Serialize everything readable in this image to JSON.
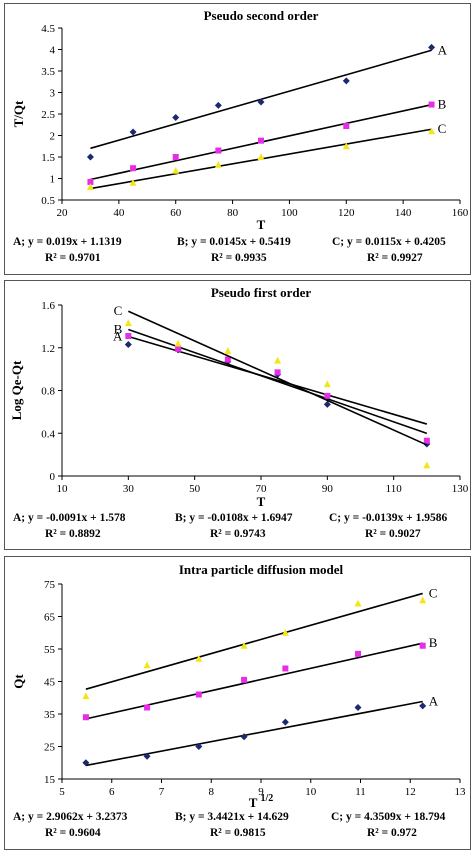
{
  "chart_data": [
    {
      "type": "scatter",
      "title": "Pseudo second order",
      "xlabel": "T",
      "ylabel": "T/Qt",
      "xlim": [
        20,
        160
      ],
      "ylim": [
        0.5,
        4.5
      ],
      "xticks": [
        20,
        40,
        60,
        80,
        100,
        120,
        140,
        160
      ],
      "yticks": [
        0.5,
        1,
        1.5,
        2,
        2.5,
        3,
        3.5,
        4,
        4.5
      ],
      "grid": false,
      "series": [
        {
          "name": "A",
          "color": "#1a2a6e",
          "marker": "diamond",
          "x": [
            30,
            45,
            60,
            75,
            90,
            120,
            150
          ],
          "y": [
            1.5,
            2.08,
            2.42,
            2.7,
            2.78,
            3.27,
            4.05
          ],
          "fit": {
            "slope": 0.019,
            "intercept": 1.1319
          }
        },
        {
          "name": "B",
          "color": "#e62ee6",
          "marker": "square",
          "x": [
            30,
            45,
            60,
            75,
            90,
            120,
            150
          ],
          "y": [
            0.92,
            1.24,
            1.5,
            1.65,
            1.88,
            2.22,
            2.72
          ],
          "fit": {
            "slope": 0.0145,
            "intercept": 0.5419
          }
        },
        {
          "name": "C",
          "color": "#f2e61a",
          "marker": "triangle",
          "x": [
            30,
            45,
            60,
            75,
            90,
            120,
            150
          ],
          "y": [
            0.8,
            0.9,
            1.18,
            1.32,
            1.5,
            1.75,
            2.1
          ],
          "fit": {
            "slope": 0.0115,
            "intercept": 0.4205
          }
        }
      ],
      "equations": [
        {
          "series": "A",
          "eq": "y = 0.019x + 1.1319",
          "r2": "R² = 0.9701"
        },
        {
          "series": "B",
          "eq": "y = 0.0145x + 0.5419",
          "r2": "R² = 0.9935"
        },
        {
          "series": "C",
          "eq": "y = 0.0115x + 0.4205",
          "r2": "R² = 0.9927"
        }
      ]
    },
    {
      "type": "scatter",
      "title": "Pseudo first order",
      "xlabel": "T",
      "ylabel": "Log Qe-Qt",
      "xlim": [
        10,
        130
      ],
      "ylim": [
        0,
        1.6
      ],
      "xticks": [
        10,
        30,
        50,
        70,
        90,
        110,
        130
      ],
      "yticks": [
        0,
        0.4,
        0.8,
        1.2,
        1.6
      ],
      "yticklabels": [
        "0",
        "0.4",
        "0.8",
        "1.2",
        "1.6"
      ],
      "grid": false,
      "series": [
        {
          "name": "A",
          "color": "#1a2a6e",
          "marker": "diamond",
          "x": [
            30,
            45,
            60,
            75,
            90,
            120
          ],
          "y": [
            1.23,
            1.18,
            1.07,
            0.95,
            0.67,
            0.3
          ],
          "fit": {
            "slope": -0.0091,
            "intercept": 1.578
          }
        },
        {
          "name": "B",
          "color": "#e62ee6",
          "marker": "square",
          "x": [
            30,
            45,
            60,
            75,
            90,
            120
          ],
          "y": [
            1.31,
            1.19,
            1.09,
            0.97,
            0.75,
            0.33
          ],
          "fit": {
            "slope": -0.0108,
            "intercept": 1.6947
          }
        },
        {
          "name": "C",
          "color": "#f2e61a",
          "marker": "triangle",
          "x": [
            30,
            45,
            60,
            75,
            90,
            120
          ],
          "y": [
            1.43,
            1.24,
            1.17,
            1.08,
            0.86,
            0.1
          ],
          "fit": {
            "slope": -0.0139,
            "intercept": 1.9586
          }
        }
      ],
      "equations": [
        {
          "series": "A",
          "eq": "y = -0.0091x + 1.578",
          "r2": "R² = 0.8892"
        },
        {
          "series": "B",
          "eq": "y = -0.0108x + 1.6947",
          "r2": "R² = 0.9743"
        },
        {
          "series": "C",
          "eq": "y = -0.0139x + 1.9586",
          "r2": "R² = 0.9027"
        }
      ]
    },
    {
      "type": "scatter",
      "title": "Intra particle diffusion model",
      "xlabel": "T",
      "xlabel_sup": "1/2",
      "ylabel": "Qt",
      "xlim": [
        5,
        13
      ],
      "ylim": [
        15,
        75
      ],
      "xticks": [
        5,
        6,
        7,
        8,
        9,
        10,
        11,
        12,
        13
      ],
      "yticks": [
        15,
        25,
        35,
        45,
        55,
        65,
        75
      ],
      "grid": false,
      "series": [
        {
          "name": "A",
          "color": "#1a2a6e",
          "marker": "diamond",
          "x": [
            5.48,
            6.71,
            7.75,
            8.66,
            9.49,
            10.95,
            12.25
          ],
          "y": [
            20,
            22,
            25,
            28,
            32.5,
            37,
            37.5
          ],
          "fit": {
            "slope": 2.9062,
            "intercept": 3.2373
          }
        },
        {
          "name": "B",
          "color": "#e62ee6",
          "marker": "square",
          "x": [
            5.48,
            6.71,
            7.75,
            8.66,
            9.49,
            10.95,
            12.25
          ],
          "y": [
            34,
            37,
            41,
            45.5,
            49,
            53.5,
            56
          ],
          "fit": {
            "slope": 3.4421,
            "intercept": 14.629
          }
        },
        {
          "name": "C",
          "color": "#f2e61a",
          "marker": "triangle",
          "x": [
            5.48,
            6.71,
            7.75,
            8.66,
            9.49,
            10.95,
            12.25
          ],
          "y": [
            40.5,
            50,
            52,
            56,
            60,
            69,
            70
          ],
          "fit": {
            "slope": 4.3509,
            "intercept": 18.794
          }
        }
      ],
      "equations": [
        {
          "series": "A",
          "eq": "y = 2.9062x + 3.2373",
          "r2": "R² = 0.9604"
        },
        {
          "series": "B",
          "eq": "y = 3.4421x + 14.629",
          "r2": "R² = 0.9815"
        },
        {
          "series": "C",
          "eq": "y = 4.3509x + 18.794",
          "r2": "R² = 0.972"
        }
      ]
    }
  ]
}
